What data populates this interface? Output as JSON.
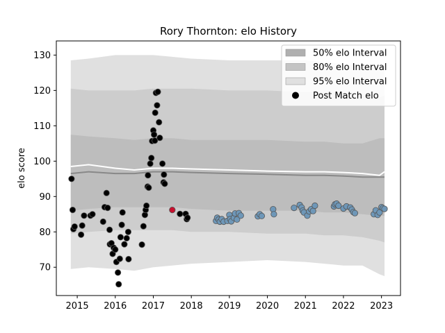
{
  "chart_data": {
    "type": "scatter",
    "title": "Rory Thornton: elo History",
    "xlabel": "",
    "ylabel": "elo score",
    "xlim": [
      2014.45,
      2023.5
    ],
    "ylim": [
      62,
      134
    ],
    "xticks": [
      2015,
      2016,
      2017,
      2018,
      2019,
      2020,
      2021,
      2022,
      2023
    ],
    "yticks": [
      70,
      80,
      90,
      100,
      110,
      120,
      130
    ],
    "legend_position": "top-right",
    "legend": [
      {
        "label": "50% elo Interval",
        "kind": "band",
        "color": "#b0b0b0"
      },
      {
        "label": "80% elo Interval",
        "kind": "band",
        "color": "#c4c4c4"
      },
      {
        "label": "95% elo Interval",
        "kind": "band",
        "color": "#e0e0e0"
      },
      {
        "label": "Post Match elo",
        "kind": "marker",
        "color": "#000000"
      }
    ],
    "colors": {
      "band95": "#e0e0e0",
      "band80": "#cdcdcd",
      "band50": "#bdbdbd",
      "median_line": "#888888",
      "mean_line": "#ffffff",
      "early_points": "#000000",
      "highlight_point": "#c8102e",
      "later_points": "#6e97b8"
    },
    "bands": {
      "x": [
        2014.83,
        2015.3,
        2016.0,
        2016.5,
        2017.0,
        2017.5,
        2018.0,
        2019.0,
        2020.0,
        2021.0,
        2021.5,
        2022.0,
        2022.5,
        2022.95,
        2023.08
      ],
      "p95_low": [
        69.5,
        70.0,
        69.5,
        69.0,
        70.0,
        70.5,
        71.0,
        71.5,
        72.0,
        71.5,
        71.0,
        70.5,
        70.5,
        68.0,
        67.5
      ],
      "p95_high": [
        128.5,
        129.0,
        130.0,
        130.0,
        130.0,
        129.5,
        129.0,
        128.5,
        128.5,
        128.5,
        128.0,
        127.5,
        126.5,
        126.0,
        127.0
      ],
      "p80_low": [
        79.5,
        80.0,
        80.5,
        80.5,
        80.5,
        80.5,
        80.0,
        80.0,
        79.5,
        79.5,
        79.0,
        79.0,
        78.5,
        77.5,
        77.0
      ],
      "p80_high": [
        120.5,
        120.0,
        120.0,
        120.0,
        120.5,
        120.5,
        120.5,
        120.0,
        120.0,
        119.5,
        119.5,
        119.0,
        118.5,
        118.0,
        118.5
      ],
      "p50_low": [
        86.0,
        86.5,
        87.0,
        87.0,
        87.0,
        87.0,
        86.5,
        86.0,
        86.0,
        86.0,
        85.5,
        85.5,
        85.0,
        84.5,
        84.5
      ],
      "p50_high": [
        107.5,
        107.0,
        106.5,
        106.0,
        106.5,
        106.5,
        106.0,
        106.0,
        106.0,
        105.5,
        105.5,
        105.0,
        105.0,
        106.5,
        106.5
      ],
      "median": [
        96.5,
        97.0,
        96.5,
        96.5,
        97.0,
        97.0,
        96.8,
        96.5,
        96.3,
        96.0,
        96.0,
        95.8,
        95.5,
        95.5,
        95.5
      ],
      "mean": [
        98.5,
        99.0,
        98.0,
        97.5,
        98.0,
        98.0,
        97.8,
        97.5,
        97.2,
        97.0,
        97.0,
        96.8,
        96.5,
        96.0,
        97.0
      ]
    },
    "series": [
      {
        "group": "early",
        "points": [
          [
            2014.85,
            95.0
          ],
          [
            2014.88,
            86.2
          ],
          [
            2014.9,
            80.8
          ],
          [
            2014.93,
            81.5
          ],
          [
            2015.1,
            79.2
          ],
          [
            2015.13,
            81.8
          ],
          [
            2015.18,
            84.6
          ],
          [
            2015.35,
            84.6
          ],
          [
            2015.4,
            85.0
          ],
          [
            2015.68,
            82.9
          ],
          [
            2015.72,
            87.0
          ],
          [
            2015.77,
            91.0
          ],
          [
            2015.8,
            86.8
          ],
          [
            2015.85,
            80.6
          ],
          [
            2015.86,
            76.5
          ],
          [
            2015.9,
            76.8
          ],
          [
            2015.93,
            73.8
          ],
          [
            2015.96,
            75.5
          ],
          [
            2016.0,
            75.0
          ],
          [
            2016.03,
            71.5
          ],
          [
            2016.07,
            68.5
          ],
          [
            2016.09,
            65.2
          ],
          [
            2016.12,
            72.4
          ],
          [
            2016.14,
            78.5
          ],
          [
            2016.17,
            82.0
          ],
          [
            2016.19,
            85.5
          ],
          [
            2016.24,
            76.5
          ],
          [
            2016.3,
            78.2
          ],
          [
            2016.34,
            80.0
          ],
          [
            2016.35,
            72.3
          ],
          [
            2016.7,
            76.4
          ],
          [
            2016.74,
            81.6
          ],
          [
            2016.78,
            84.8
          ],
          [
            2016.8,
            86.2
          ],
          [
            2016.82,
            87.4
          ],
          [
            2016.85,
            92.8
          ],
          [
            2016.86,
            96.0
          ],
          [
            2016.88,
            92.5
          ],
          [
            2016.92,
            99.3
          ],
          [
            2016.95,
            100.9
          ],
          [
            2016.97,
            105.7
          ],
          [
            2017.0,
            108.7
          ],
          [
            2017.02,
            107.5
          ],
          [
            2017.04,
            105.8
          ],
          [
            2017.05,
            113.7
          ],
          [
            2017.07,
            119.3
          ],
          [
            2017.1,
            115.8
          ],
          [
            2017.12,
            119.6
          ],
          [
            2017.15,
            111.0
          ],
          [
            2017.17,
            106.6
          ],
          [
            2017.24,
            99.3
          ],
          [
            2017.27,
            94.0
          ],
          [
            2017.28,
            96.2
          ],
          [
            2017.3,
            93.6
          ],
          [
            2017.7,
            85.1
          ],
          [
            2017.85,
            85.1
          ],
          [
            2017.88,
            83.6
          ],
          [
            2017.9,
            84.0
          ]
        ]
      },
      {
        "group": "highlight",
        "points": [
          [
            2017.5,
            86.2
          ]
        ]
      },
      {
        "group": "later",
        "points": [
          [
            2018.65,
            83.1
          ],
          [
            2018.68,
            84.0
          ],
          [
            2018.72,
            83.5
          ],
          [
            2018.75,
            82.9
          ],
          [
            2018.8,
            83.6
          ],
          [
            2018.85,
            82.9
          ],
          [
            2018.95,
            83.1
          ],
          [
            2019.0,
            84.8
          ],
          [
            2019.02,
            83.6
          ],
          [
            2019.05,
            83.0
          ],
          [
            2019.12,
            84.0
          ],
          [
            2019.15,
            85.2
          ],
          [
            2019.2,
            83.5
          ],
          [
            2019.25,
            85.3
          ],
          [
            2019.3,
            84.6
          ],
          [
            2019.75,
            84.4
          ],
          [
            2019.8,
            85.0
          ],
          [
            2019.85,
            84.5
          ],
          [
            2020.15,
            86.4
          ],
          [
            2020.17,
            85.0
          ],
          [
            2020.7,
            86.8
          ],
          [
            2020.85,
            87.6
          ],
          [
            2020.9,
            86.9
          ],
          [
            2020.93,
            86.0
          ],
          [
            2020.96,
            85.5
          ],
          [
            2021.05,
            84.6
          ],
          [
            2021.1,
            85.8
          ],
          [
            2021.15,
            86.4
          ],
          [
            2021.2,
            85.9
          ],
          [
            2021.25,
            87.4
          ],
          [
            2021.75,
            87.2
          ],
          [
            2021.78,
            87.8
          ],
          [
            2021.82,
            88.0
          ],
          [
            2021.87,
            87.4
          ],
          [
            2022.0,
            86.6
          ],
          [
            2022.08,
            87.2
          ],
          [
            2022.18,
            86.9
          ],
          [
            2022.22,
            86.3
          ],
          [
            2022.26,
            85.6
          ],
          [
            2022.3,
            85.3
          ],
          [
            2022.8,
            85.0
          ],
          [
            2022.85,
            86.1
          ],
          [
            2022.9,
            84.8
          ],
          [
            2022.95,
            85.5
          ],
          [
            2023.0,
            87.0
          ],
          [
            2023.04,
            86.7
          ],
          [
            2023.08,
            86.5
          ]
        ]
      }
    ]
  }
}
